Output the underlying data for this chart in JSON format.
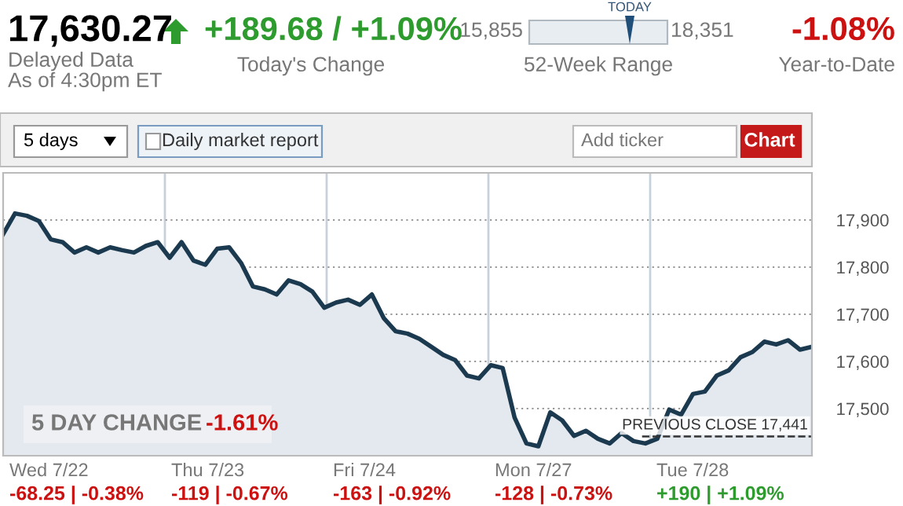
{
  "chart_data": {
    "type": "area",
    "annotations": [
      "17,630.27",
      "Delayed Data",
      "As of 4:30pm ET",
      "+189.68 / +1.09%",
      "Today's Change",
      "15,855",
      "18,351",
      "TODAY",
      "52-Week Range",
      "-1.08%",
      "Year-to-Date",
      "5 days",
      "Daily market report",
      "Add ticker",
      "Chart",
      "5 DAY CHANGE",
      "-1.61%",
      "Wed 7/22",
      "-68.25 | -0.38%",
      "Thu 7/23",
      "-119 | -0.67%",
      "Fri 7/24",
      "-163 | -0.92%",
      "Mon 7/27",
      "-128 | -0.73%",
      "Tue 7/28",
      "+190 | +1.09%"
    ],
    "categories": [
      null,
      null,
      null,
      null,
      null,
      null,
      null,
      null,
      null,
      null,
      null,
      null,
      null,
      null,
      null,
      null,
      null,
      null,
      null,
      null,
      null,
      null,
      null,
      null,
      null,
      null,
      null,
      null,
      null,
      null,
      null,
      null,
      null,
      null,
      null,
      null,
      null,
      null,
      null,
      null,
      null,
      null,
      null,
      null,
      null,
      null,
      null,
      null,
      null,
      null,
      null,
      null,
      null,
      null,
      null,
      null,
      null,
      null,
      null,
      null,
      null,
      null,
      null,
      null,
      null,
      null,
      null,
      null,
      null
    ],
    "series": [
      {
        "color": "#1b3a4f",
        "values": [
          17870,
          17914,
          17909,
          17898,
          17859,
          17853,
          17831,
          17842,
          17831,
          17842,
          17836,
          17831,
          17845,
          17853,
          17820,
          17853,
          17814,
          17805,
          17839,
          17842,
          17809,
          17759,
          17753,
          17742,
          17772,
          17764,
          17748,
          17714,
          17725,
          17731,
          17720,
          17742,
          17692,
          17664,
          17659,
          17648,
          17631,
          17614,
          17603,
          17570,
          17564,
          17592,
          17586,
          17481,
          17426,
          17420,
          17492,
          17475,
          17442,
          17453,
          17436,
          17426,
          17448,
          17431,
          17426,
          17436,
          17498,
          17487,
          17531,
          17536,
          17570,
          17581,
          17609,
          17620,
          17642,
          17636,
          17645,
          17625,
          17631
        ]
      }
    ],
    "ylim": [
      17400,
      18000
    ],
    "yticks": [
      {
        "value": 17500,
        "label": "17,500"
      },
      {
        "value": 17600,
        "label": "17,600"
      },
      {
        "value": 17700,
        "label": "17,700"
      },
      {
        "value": 17800,
        "label": "17,800"
      },
      {
        "value": 17900,
        "label": "17,900"
      }
    ],
    "ref_lines": [
      {
        "axis": "y",
        "value": 17441,
        "label": "PREVIOUS CLOSE 17,441",
        "line_style": "dashed",
        "color": "#333333"
      }
    ],
    "grid": true,
    "tick_labels": "y"
  }
}
